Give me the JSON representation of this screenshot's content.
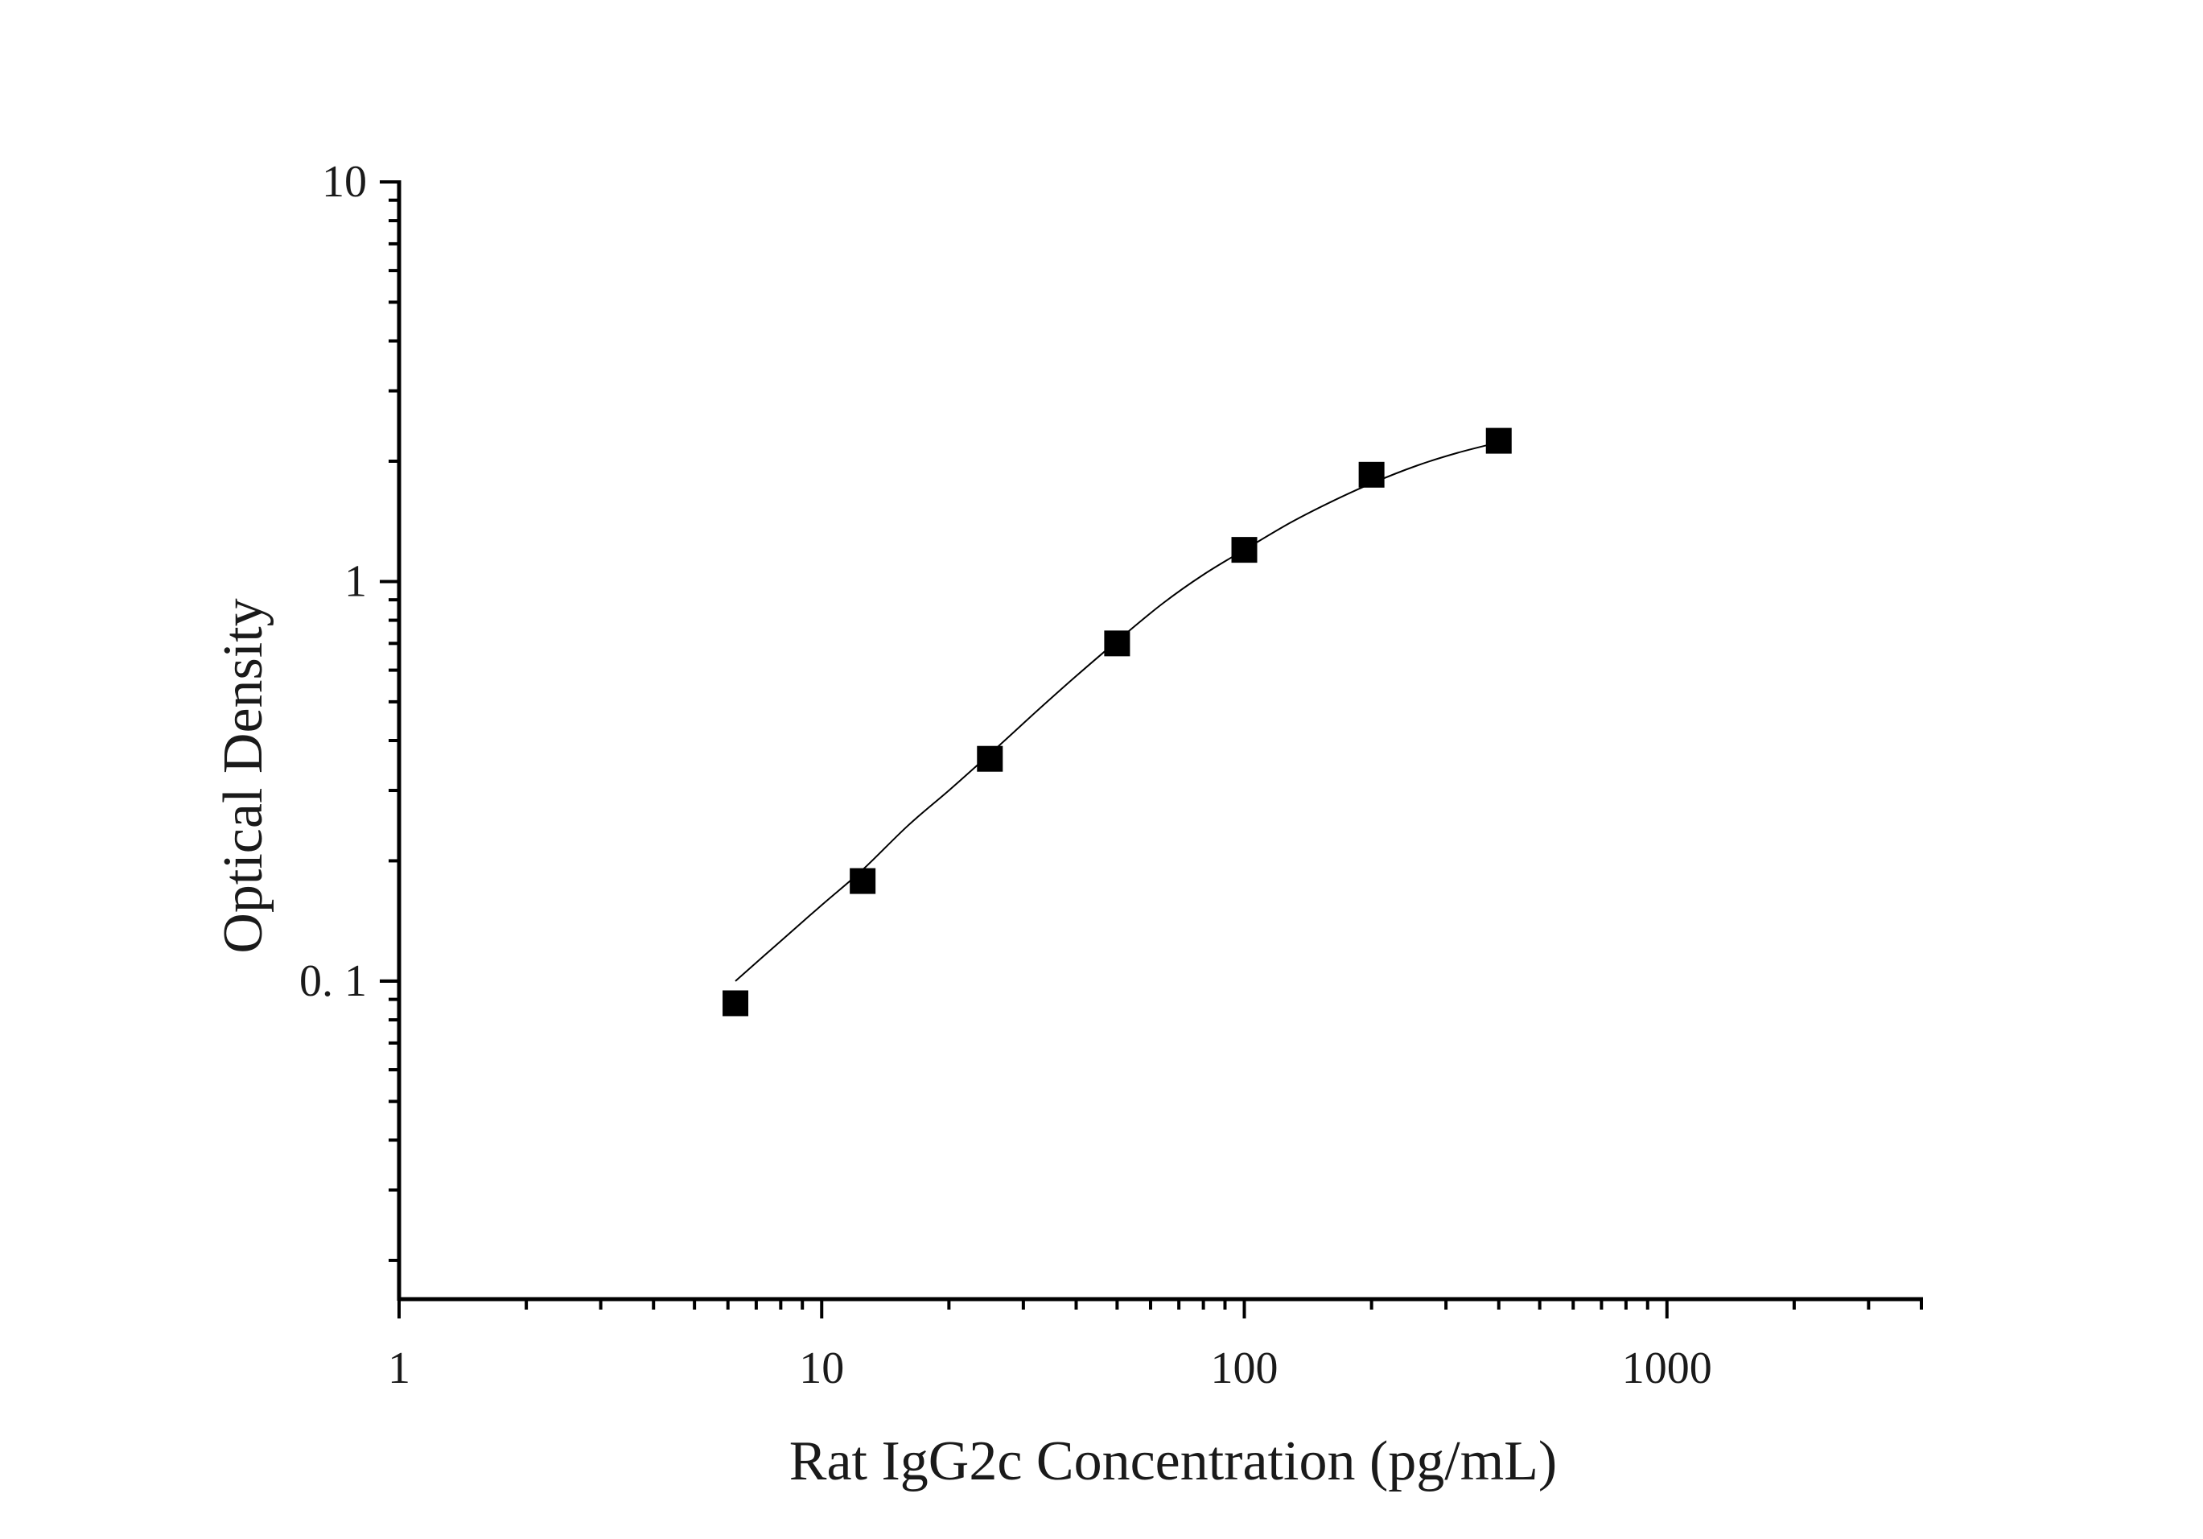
{
  "chart_data": {
    "type": "scatter",
    "xlabel": "Rat IgG2c Concentration (pg/mL)",
    "ylabel": "Optical Density",
    "x_scale": "log",
    "y_scale": "log",
    "xlim": [
      1,
      4000
    ],
    "ylim": [
      0.016,
      10
    ],
    "x_tick_labels": [
      "1",
      "10",
      "100",
      "1000"
    ],
    "y_tick_labels": [
      "10",
      "1",
      "0. 1"
    ],
    "grid": false,
    "legend": "none",
    "series": [
      {
        "marker": "square",
        "x": [
          6.25,
          12.5,
          25,
          50,
          100,
          200,
          400
        ],
        "y": [
          0.088,
          0.178,
          0.36,
          0.7,
          1.2,
          1.85,
          2.25
        ]
      }
    ],
    "fit_curve": {
      "style": "line",
      "x": [
        6.25,
        8,
        10,
        12.5,
        16,
        20,
        25,
        32,
        40,
        50,
        64,
        80,
        100,
        128,
        160,
        200,
        256,
        320,
        400
      ],
      "y": [
        0.1,
        0.126,
        0.155,
        0.19,
        0.245,
        0.3,
        0.37,
        0.47,
        0.58,
        0.71,
        0.88,
        1.04,
        1.2,
        1.4,
        1.58,
        1.76,
        1.95,
        2.1,
        2.23
      ]
    },
    "colors": {
      "axis": "#000000",
      "marker": "#000000",
      "curve": "#000000",
      "text": "#1a1a1a"
    }
  }
}
